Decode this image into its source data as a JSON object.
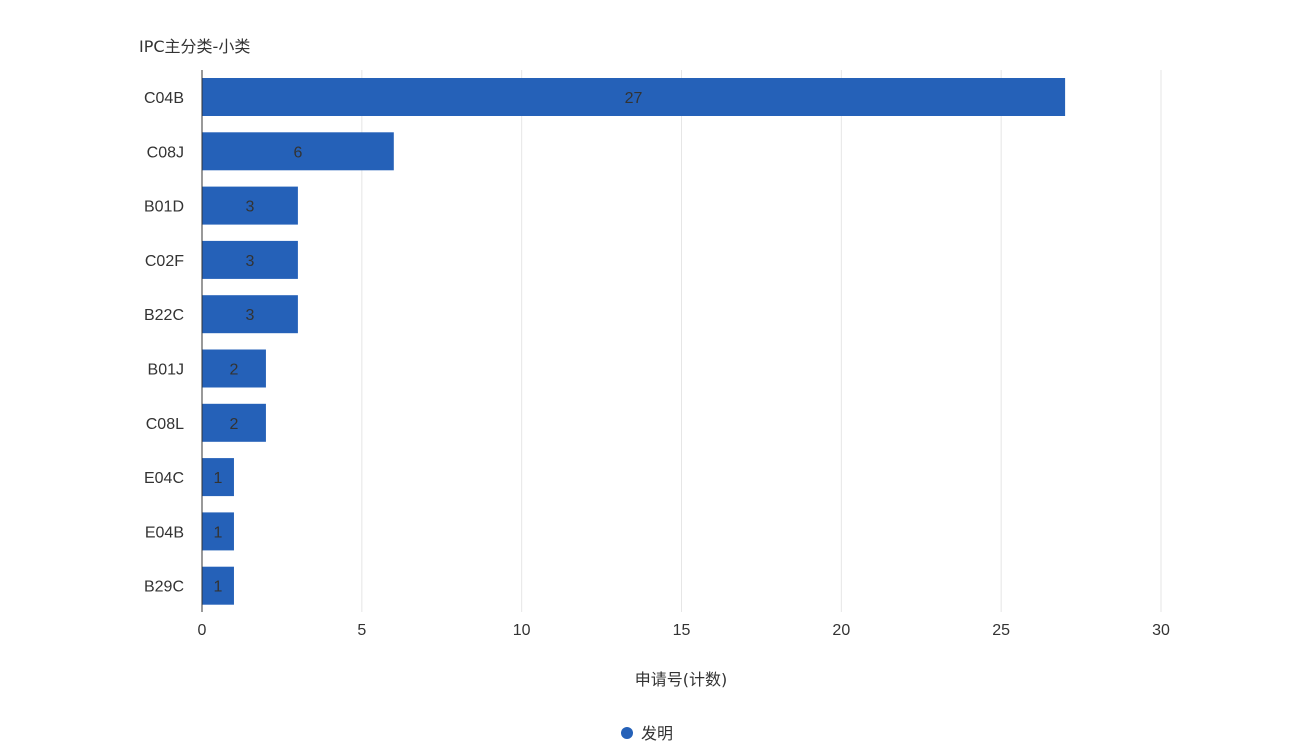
{
  "chart_data": {
    "type": "bar",
    "orientation": "horizontal",
    "categories": [
      "C04B",
      "C08J",
      "B01D",
      "C02F",
      "B22C",
      "B01J",
      "C08L",
      "E04C",
      "E04B",
      "B29C"
    ],
    "series": [
      {
        "name": "发明",
        "values": [
          27,
          6,
          3,
          3,
          3,
          2,
          2,
          1,
          1,
          1
        ],
        "color": "#2561b8"
      }
    ],
    "ylabel": "IPC主分类-小类",
    "xlabel": "申请号(计数)",
    "xlim": [
      0,
      30
    ],
    "xticks": [
      0,
      5,
      10,
      15,
      20,
      25,
      30
    ],
    "xtick_labels": [
      "0",
      "5",
      "10",
      "15",
      "20",
      "25",
      "30"
    ],
    "data_labels": [
      "27",
      "6",
      "3",
      "3",
      "3",
      "2",
      "2",
      "1",
      "1",
      "1"
    ],
    "grid": "vertical",
    "legend": "bottom-center"
  }
}
